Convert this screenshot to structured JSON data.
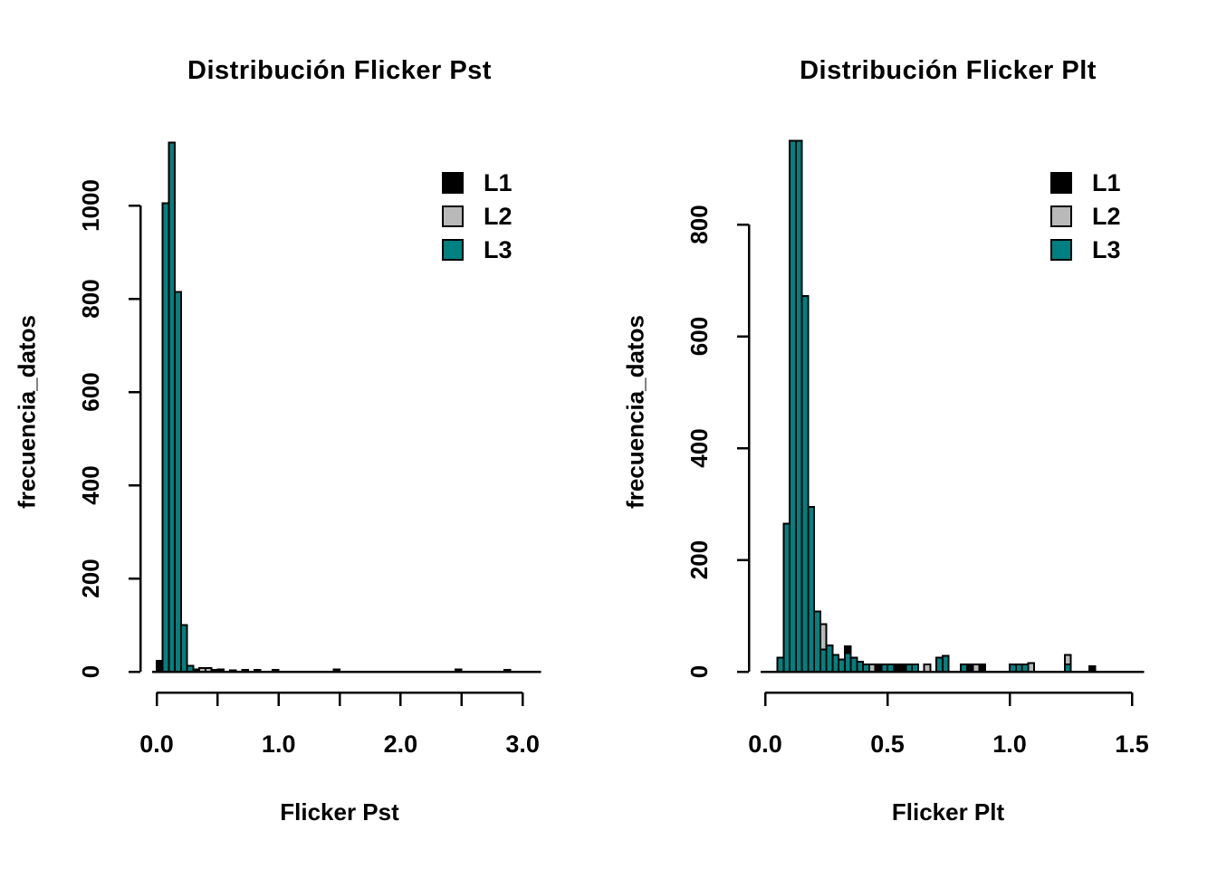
{
  "figure": {
    "background": "#ffffff"
  },
  "legend": {
    "items": [
      {
        "label": "L1",
        "color": "#000000"
      },
      {
        "label": "L2",
        "color": "#b9b9b9"
      },
      {
        "label": "L3",
        "color": "#008080"
      }
    ]
  },
  "chart_data": [
    {
      "type": "bar",
      "subtype": "overlaid-histograms",
      "title": "Distribución Flicker Pst",
      "xlabel": "Flicker Pst",
      "ylabel": "frecuencia_datos",
      "xlim": [
        0,
        3.15
      ],
      "ylim": [
        0,
        1140
      ],
      "bin_width": 0.05,
      "grid": false,
      "legend_position": "top-right-inside",
      "x_ticks": [
        0,
        0.5,
        1.0,
        1.5,
        2.0,
        2.5,
        3.0
      ],
      "x_tick_labels": [
        "0.0",
        "",
        "1.0",
        "",
        "2.0",
        "",
        "3.0"
      ],
      "y_ticks": [
        0,
        200,
        400,
        600,
        800,
        1000
      ],
      "y_tick_labels": [
        "0",
        "200",
        "400",
        "600",
        "800",
        "1000"
      ],
      "baseline_extent": [
        0,
        3.15
      ],
      "series": [
        {
          "name": "L1",
          "color": "#000000",
          "bars": [
            [
              0.0,
              23
            ],
            [
              0.3,
              5
            ],
            [
              0.45,
              4
            ],
            [
              0.5,
              5
            ],
            [
              0.6,
              3
            ],
            [
              0.7,
              4
            ],
            [
              0.8,
              4
            ],
            [
              0.95,
              4
            ],
            [
              1.45,
              5
            ],
            [
              2.45,
              5
            ],
            [
              2.85,
              4
            ]
          ]
        },
        {
          "name": "L2",
          "color": "#b9b9b9",
          "bars": [
            [
              0.35,
              8
            ],
            [
              0.4,
              8
            ]
          ]
        },
        {
          "name": "L3",
          "color": "#008080",
          "bars": [
            [
              0.05,
              1005
            ],
            [
              0.1,
              1135
            ],
            [
              0.15,
              815
            ],
            [
              0.2,
              100
            ],
            [
              0.25,
              13
            ]
          ]
        }
      ]
    },
    {
      "type": "bar",
      "subtype": "overlaid-histograms",
      "title": "Distribución Flicker Plt",
      "xlabel": "Flicker Plt",
      "ylabel": "frecuencia_datos",
      "xlim": [
        0,
        1.55
      ],
      "ylim": [
        0,
        955
      ],
      "bin_width": 0.025,
      "grid": false,
      "legend_position": "top-right-inside",
      "x_ticks": [
        0,
        0.5,
        1.0,
        1.5
      ],
      "x_tick_labels": [
        "0.0",
        "0.5",
        "1.0",
        "1.5"
      ],
      "y_ticks": [
        0,
        200,
        400,
        600,
        800
      ],
      "y_tick_labels": [
        "0",
        "200",
        "400",
        "600",
        "800"
      ],
      "baseline_extent": [
        0,
        1.55
      ],
      "series": [
        {
          "name": "L1",
          "color": "#000000",
          "bars": [
            [
              0.325,
              45
            ],
            [
              0.45,
              13
            ],
            [
              0.525,
              13
            ],
            [
              0.55,
              13
            ],
            [
              0.825,
              13
            ],
            [
              0.875,
              13
            ],
            [
              1.325,
              10
            ]
          ]
        },
        {
          "name": "L2",
          "color": "#b9b9b9",
          "bars": [
            [
              0.225,
              85
            ],
            [
              0.425,
              13
            ],
            [
              0.65,
              13
            ],
            [
              0.85,
              13
            ],
            [
              1.075,
              15
            ],
            [
              1.225,
              30
            ]
          ]
        },
        {
          "name": "L3",
          "color": "#008080",
          "bars": [
            [
              0.05,
              25
            ],
            [
              0.075,
              265
            ],
            [
              0.1,
              950
            ],
            [
              0.125,
              950
            ],
            [
              0.15,
              672
            ],
            [
              0.175,
              295
            ],
            [
              0.2,
              108
            ],
            [
              0.225,
              40
            ],
            [
              0.25,
              47
            ],
            [
              0.275,
              30
            ],
            [
              0.3,
              22
            ],
            [
              0.325,
              33
            ],
            [
              0.35,
              25
            ],
            [
              0.375,
              18
            ],
            [
              0.4,
              13
            ],
            [
              0.475,
              13
            ],
            [
              0.5,
              13
            ],
            [
              0.575,
              13
            ],
            [
              0.6,
              13
            ],
            [
              0.7,
              25
            ],
            [
              0.725,
              28
            ],
            [
              0.8,
              13
            ],
            [
              1.0,
              13
            ],
            [
              1.025,
              13
            ],
            [
              1.05,
              13
            ],
            [
              1.225,
              13
            ]
          ]
        }
      ]
    }
  ]
}
